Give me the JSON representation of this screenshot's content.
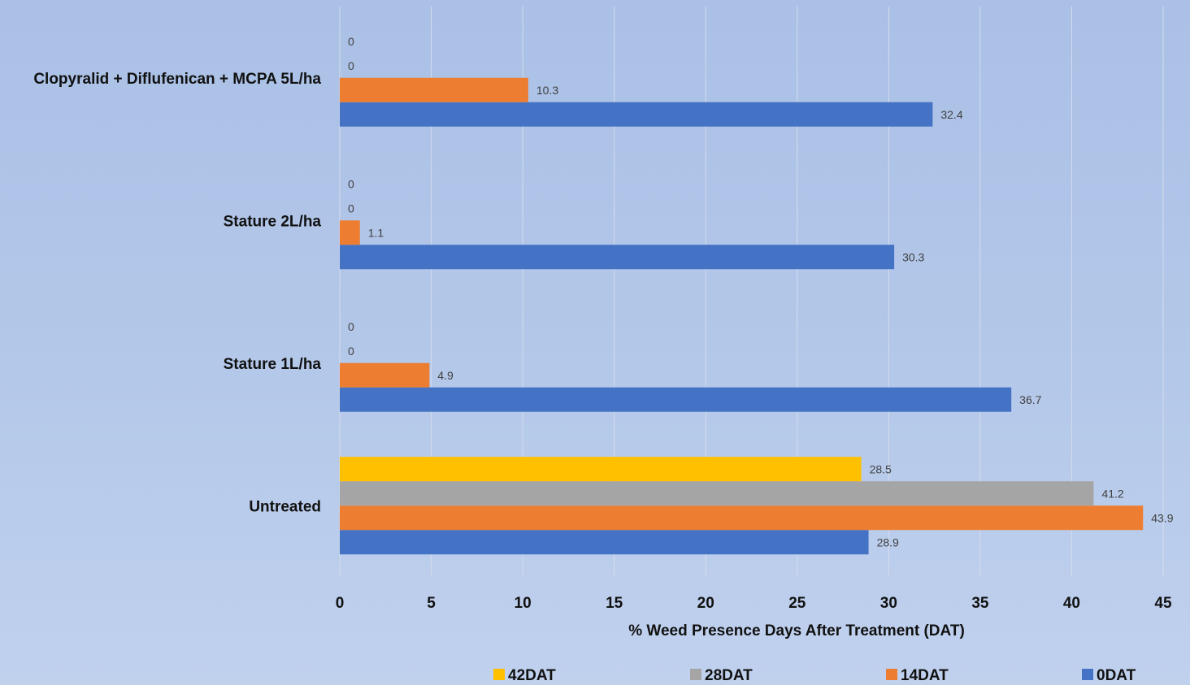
{
  "chart_data": {
    "type": "bar",
    "orientation": "horizontal",
    "title": "",
    "xlabel": "% Weed Presence Days After Treatment (DAT)",
    "ylabel": "",
    "xlim": [
      0,
      45
    ],
    "x_ticks": [
      0,
      5,
      10,
      15,
      20,
      25,
      30,
      35,
      40,
      45
    ],
    "grid": "vertical",
    "legend_position": "bottom",
    "categories": [
      "Untreated",
      "Stature 1L/ha",
      "Stature 2L/ha",
      "Clopyralid + Diflufenican + MCPA 5L/ha"
    ],
    "series": [
      {
        "name": "0DAT",
        "color": "#4472c4",
        "values": [
          28.9,
          36.7,
          30.3,
          32.4
        ]
      },
      {
        "name": "14DAT",
        "color": "#ed7d31",
        "values": [
          43.9,
          4.9,
          1.1,
          10.3
        ]
      },
      {
        "name": "28DAT",
        "color": "#a5a5a5",
        "values": [
          41.2,
          0,
          0,
          0
        ]
      },
      {
        "name": "42DAT",
        "color": "#ffc000",
        "values": [
          28.5,
          0,
          0,
          0
        ]
      }
    ],
    "legend_order": [
      "42DAT",
      "28DAT",
      "14DAT",
      "0DAT"
    ]
  }
}
